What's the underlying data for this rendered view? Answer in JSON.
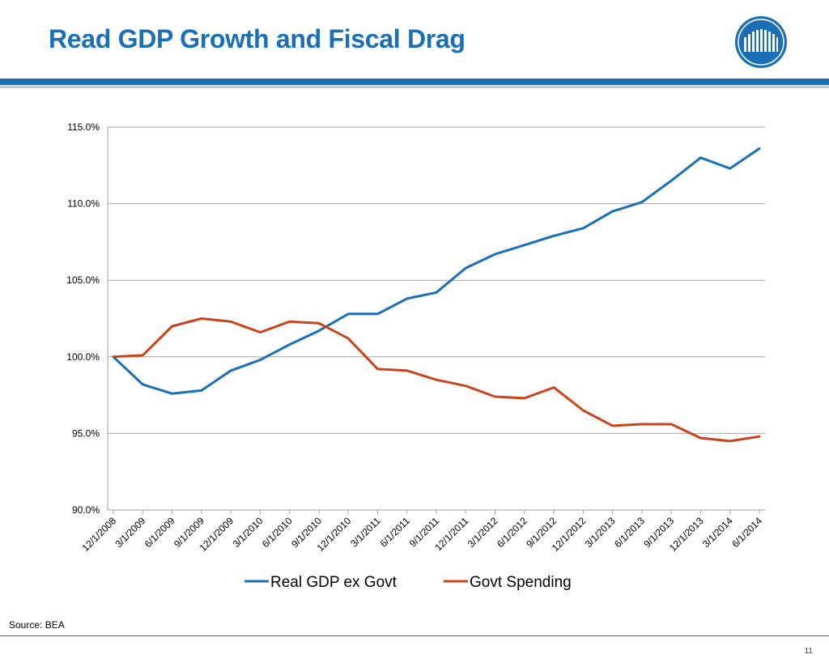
{
  "slide": {
    "title": "Read GDP Growth and Fiscal Drag",
    "source": "Source:  BEA",
    "page_number": "11"
  },
  "colors": {
    "title": "#1a6fb7",
    "real_gdp": "#1a6fb7",
    "govt": "#c9441c",
    "grid": "#a6a6a6"
  },
  "chart_data": {
    "type": "line",
    "title": "",
    "xlabel": "",
    "ylabel": "",
    "ylim": [
      90,
      115
    ],
    "yticks": [
      "90.0%",
      "95.0%",
      "100.0%",
      "105.0%",
      "110.0%",
      "115.0%"
    ],
    "grid": true,
    "legend_position": "bottom",
    "categories": [
      "12/1/2008",
      "3/1/2009",
      "6/1/2009",
      "9/1/2009",
      "12/1/2009",
      "3/1/2010",
      "6/1/2010",
      "9/1/2010",
      "12/1/2010",
      "3/1/2011",
      "6/1/2011",
      "9/1/2011",
      "12/1/2011",
      "3/1/2012",
      "6/1/2012",
      "9/1/2012",
      "12/1/2012",
      "3/1/2013",
      "6/1/2013",
      "9/1/2013",
      "12/1/2013",
      "3/1/2014",
      "6/1/2014"
    ],
    "series": [
      {
        "name": "Real GDP ex Govt",
        "color": "#1a6fb7",
        "values": [
          100.0,
          98.2,
          97.6,
          97.8,
          99.1,
          99.8,
          100.8,
          101.7,
          102.8,
          102.8,
          103.8,
          104.2,
          105.8,
          106.7,
          107.3,
          107.9,
          108.4,
          109.5,
          110.1,
          111.5,
          113.0,
          112.3,
          113.6
        ]
      },
      {
        "name": "Govt Spending",
        "color": "#c9441c",
        "values": [
          100.0,
          100.1,
          102.0,
          102.5,
          102.3,
          101.6,
          102.3,
          102.2,
          101.2,
          99.2,
          99.1,
          98.5,
          98.1,
          97.4,
          97.3,
          98.0,
          96.5,
          95.5,
          95.6,
          95.6,
          94.7,
          94.5,
          94.8
        ]
      }
    ]
  }
}
